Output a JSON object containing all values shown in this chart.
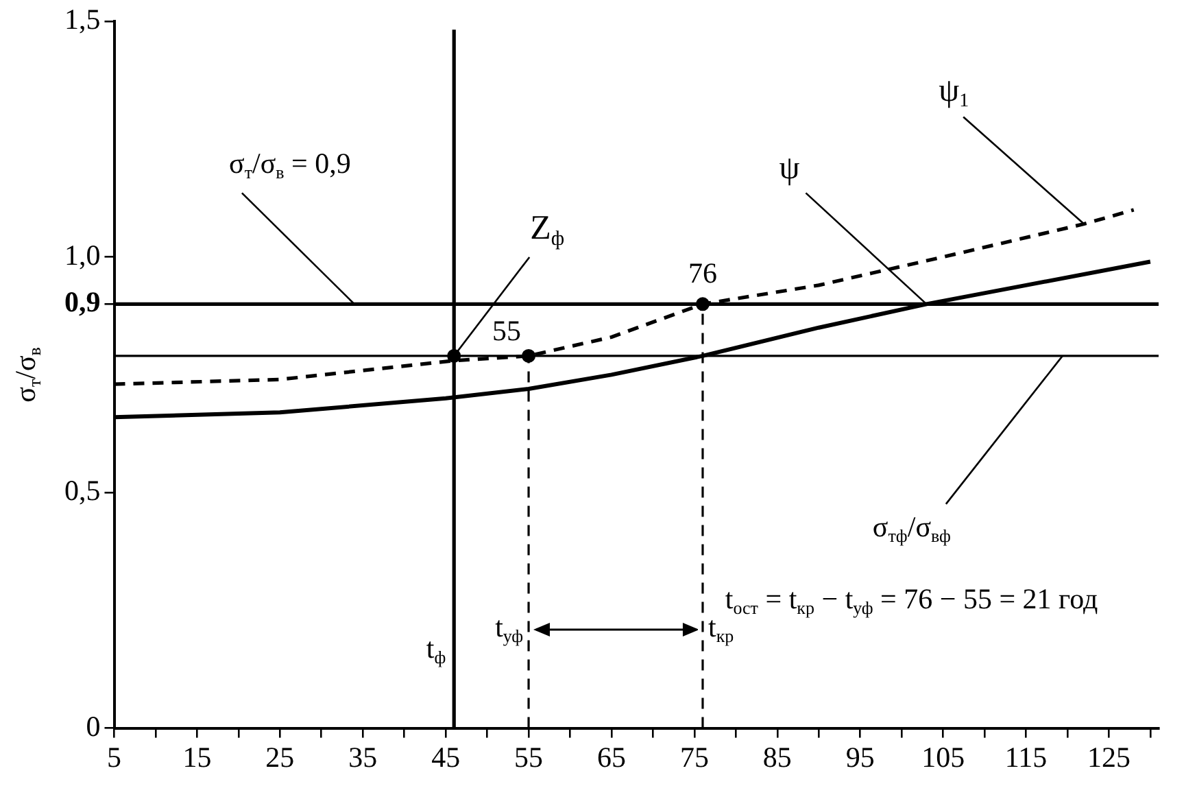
{
  "chart_data": {
    "type": "line",
    "ylabel": "σ$_{т}$/σ$_{в}$",
    "xlim": [
      5,
      131
    ],
    "xticks": [
      5,
      {
        "value": 10,
        "label": null
      },
      15,
      {
        "value": 20,
        "label": null
      },
      25,
      {
        "value": 30,
        "label": null
      },
      35,
      {
        "value": 40,
        "label": null
      },
      45,
      {
        "value": 50,
        "label": null
      },
      55,
      {
        "value": 60,
        "label": null
      },
      65,
      {
        "value": 70,
        "label": null
      },
      75,
      {
        "value": 80,
        "label": null
      },
      85,
      {
        "value": 90,
        "label": null
      },
      95,
      {
        "value": 100,
        "label": null
      },
      105,
      {
        "value": 110,
        "label": null
      },
      115,
      {
        "value": 120,
        "label": null
      },
      125,
      {
        "value": 130,
        "label": null
      }
    ],
    "ylim": [
      0,
      1.5
    ],
    "yticks": [
      0,
      {
        "value": 0.5,
        "label": "0,5"
      },
      {
        "value": 0.9,
        "label": "0,9"
      },
      {
        "value": 1,
        "label": "1,0"
      },
      {
        "value": 1.5,
        "label": "1,5"
      }
    ],
    "series": [
      {
        "name": "ψ",
        "color": "#000000",
        "x": [
          5,
          25,
          45,
          55,
          65,
          76,
          90,
          103,
          115,
          130
        ],
        "values": [
          0.66,
          0.67,
          0.7,
          0.72,
          0.75,
          0.79,
          0.85,
          0.9,
          0.94,
          0.99
        ]
      },
      {
        "name": "ψ$_{1}$",
        "color": "#000000",
        "line_style": "dashed",
        "x": [
          5,
          25,
          46,
          55,
          65,
          76,
          90,
          105,
          122,
          128
        ],
        "values": [
          0.73,
          0.74,
          0.78,
          0.79,
          0.83,
          0.9,
          0.94,
          1.0,
          1.07,
          1.1
        ]
      },
      {
        "color": "#000000",
        "line_style": "dashed",
        "x": [
          55,
          55
        ],
        "values": [
          0,
          0.79
        ]
      },
      {
        "color": "#000000",
        "line_style": "dashed",
        "x": [
          76,
          76
        ],
        "values": [
          0,
          0.9
        ]
      },
      {
        "type": "scatter",
        "marker": "circle",
        "color": "#000000",
        "x": [
          46,
          55,
          76
        ],
        "values": [
          0.79,
          0.79,
          0.9
        ]
      }
    ],
    "ref_lines": [
      {
        "axis": "y",
        "value": 0.9,
        "label": "σ$_{т}$/σ$_{в}$ = 0,9"
      },
      {
        "axis": "y",
        "value": 0.79,
        "label": "σ$_{тф}$/σ$_{вф}$"
      },
      {
        "axis": "x",
        "value": 46,
        "label": "t$_{ф}$"
      }
    ],
    "annotations": [
      {
        "text": "Z$_{ф}$",
        "x": 46,
        "y": 0.79
      },
      {
        "text": "55",
        "x": 55,
        "y": 0.79
      },
      {
        "text": "76",
        "x": 76,
        "y": 0.9
      },
      {
        "text": "t$_{уф}$",
        "x": 55,
        "y": 0.21
      },
      {
        "text": "t$_{кр}$",
        "x": 76,
        "y": 0.21
      },
      "t$_{ост}$ = t$_{кр}$ − t$_{уф}$ = 76 − 55 = 21 год"
    ]
  }
}
